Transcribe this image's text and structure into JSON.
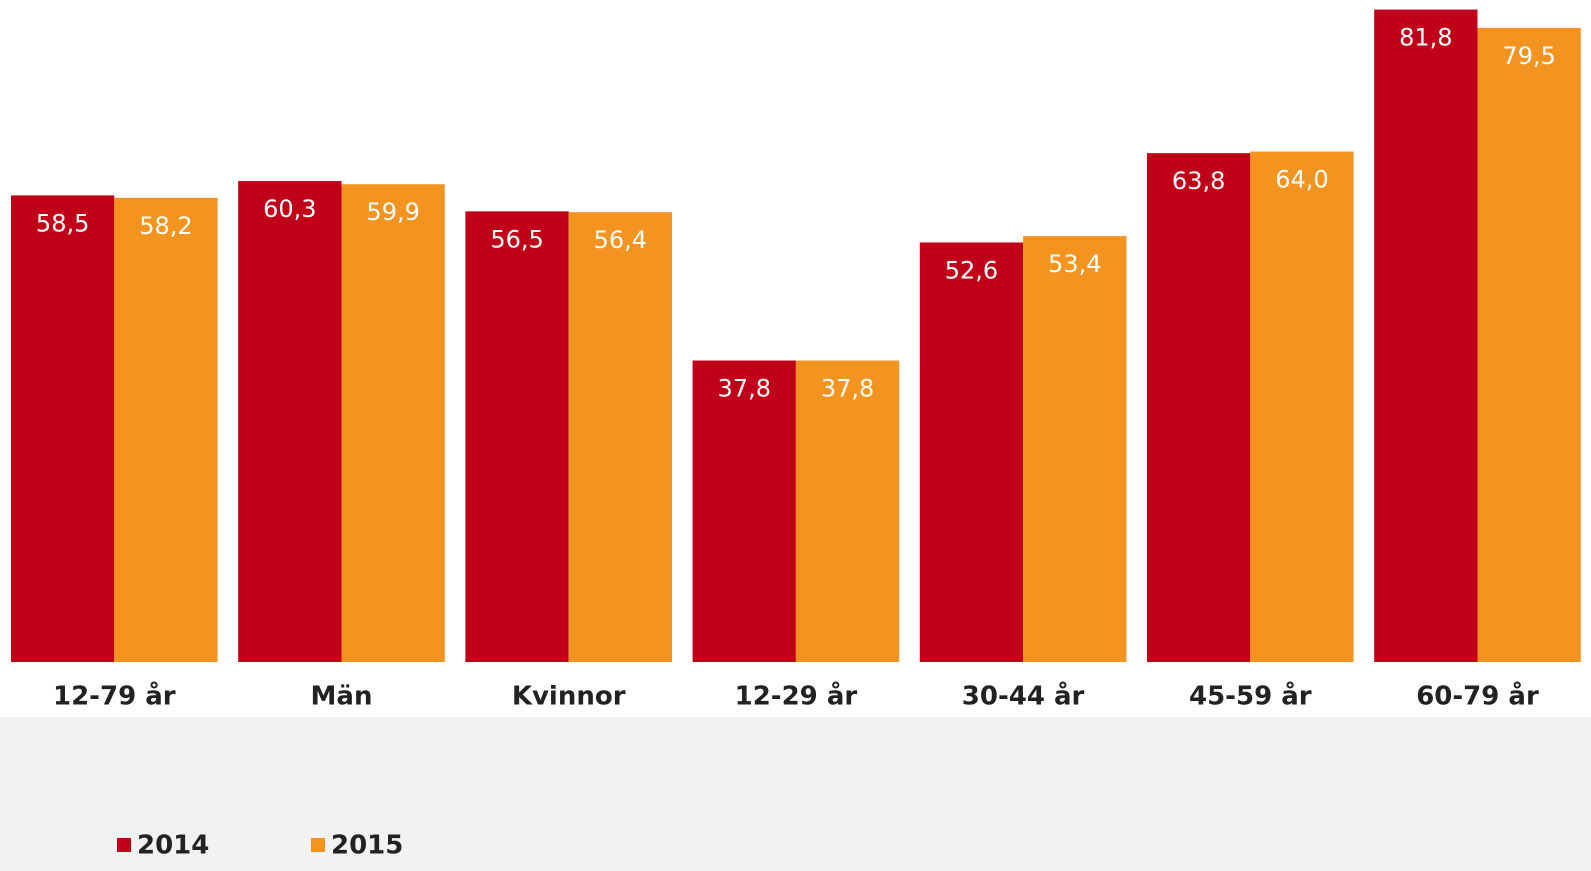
{
  "chart_data": {
    "type": "bar",
    "categories": [
      "12-79 år",
      "Män",
      "Kvinnor",
      "12-29 år",
      "30-44 år",
      "45-59 år",
      "60-79 år"
    ],
    "series": [
      {
        "name": "2014",
        "color": "#c00018",
        "values": [
          58.5,
          60.3,
          56.5,
          37.8,
          52.6,
          63.8,
          81.8
        ],
        "value_labels": [
          "58,5",
          "60,3",
          "56,5",
          "37,8",
          "52,6",
          "63,8",
          "81,8"
        ]
      },
      {
        "name": "2015",
        "color": "#f39420",
        "values": [
          58.2,
          59.9,
          56.4,
          37.8,
          53.4,
          64.0,
          79.5
        ],
        "value_labels": [
          "58,2",
          "59,9",
          "56,4",
          "37,8",
          "53,4",
          "64,0",
          "79,5"
        ]
      }
    ],
    "ylim": [
      0,
      83
    ]
  }
}
